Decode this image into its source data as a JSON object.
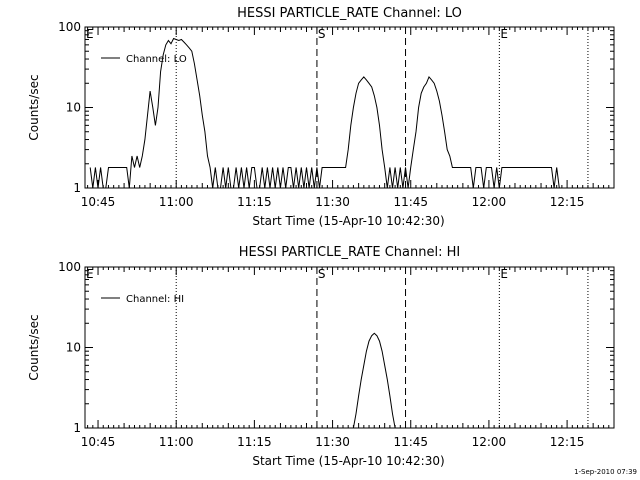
{
  "chart_data": [
    {
      "type": "line",
      "title": "HESSI PARTICLE_RATE Channel: LO",
      "xlabel": "Start Time (15-Apr-10 10:42:30)",
      "ylabel": "Counts/sec",
      "y_scale": "log",
      "ylim": [
        1,
        100
      ],
      "xlim": [
        "10:42:30",
        "12:24:00"
      ],
      "y_tick_labels": [
        "1",
        "10",
        "100"
      ],
      "x_tick_labels": [
        "10:45",
        "11:00",
        "11:15",
        "11:30",
        "11:45",
        "12:00",
        "12:15"
      ],
      "legend": {
        "placement": "top-left",
        "entries": [
          "Channel: LO"
        ]
      },
      "markers": [
        {
          "label": "E",
          "time": "10:42:30",
          "style": "dotted"
        },
        {
          "label": "",
          "time": "11:00:00",
          "style": "dotted"
        },
        {
          "label": "S",
          "time": "11:27:00",
          "style": "dashed"
        },
        {
          "label": "",
          "time": "11:44:00",
          "style": "dashed"
        },
        {
          "label": "E",
          "time": "12:02:00",
          "style": "dotted"
        },
        {
          "label": "",
          "time": "12:19:00",
          "style": "dotted"
        }
      ],
      "series": [
        {
          "name": "Channel: LO",
          "x": [
            "10:43:30",
            "10:44:00",
            "10:44:30",
            "10:45:00",
            "10:45:30",
            "10:46:00",
            "10:46:30",
            "10:47:00",
            "10:47:30",
            "10:48:00",
            "10:48:30",
            "10:49:00",
            "10:49:30",
            "10:50:00",
            "10:50:30",
            "10:51:00",
            "10:51:30",
            "10:52:00",
            "10:52:30",
            "10:53:00",
            "10:53:30",
            "10:54:00",
            "10:54:30",
            "10:55:00",
            "10:55:30",
            "10:56:00",
            "10:56:30",
            "10:57:00",
            "10:57:30",
            "10:58:00",
            "10:58:30",
            "10:59:00",
            "10:59:30",
            "11:00:00",
            "11:00:30",
            "11:01:00",
            "11:01:30",
            "11:02:00",
            "11:02:30",
            "11:03:00",
            "11:03:30",
            "11:04:00",
            "11:04:30",
            "11:05:00",
            "11:05:30",
            "11:06:00",
            "11:06:30",
            "11:07:00",
            "11:07:30",
            "11:08:00",
            "11:08:30",
            "11:09:00",
            "11:09:30",
            "11:10:00",
            "11:10:30",
            "11:11:00",
            "11:11:30",
            "11:12:00",
            "11:12:30",
            "11:13:00",
            "11:13:30",
            "11:14:00",
            "11:14:30",
            "11:15:00",
            "11:15:30",
            "11:16:00",
            "11:16:30",
            "11:17:00",
            "11:17:30",
            "11:18:00",
            "11:18:30",
            "11:19:00",
            "11:19:30",
            "11:20:00",
            "11:20:30",
            "11:21:00",
            "11:21:30",
            "11:22:00",
            "11:22:30",
            "11:23:00",
            "11:23:30",
            "11:24:00",
            "11:24:30",
            "11:25:00",
            "11:25:30",
            "11:26:00",
            "11:26:30",
            "11:27:00",
            "11:27:30",
            "11:28:00",
            "11:28:30",
            "11:29:00",
            "11:29:30",
            "11:30:00",
            "11:30:30",
            "11:31:00",
            "11:31:30",
            "11:32:00",
            "11:32:30",
            "11:33:00",
            "11:33:30",
            "11:34:00",
            "11:34:30",
            "11:35:00",
            "11:35:30",
            "11:36:00",
            "11:36:30",
            "11:37:00",
            "11:37:30",
            "11:38:00",
            "11:38:30",
            "11:39:00",
            "11:39:30",
            "11:40:00",
            "11:40:30",
            "11:41:00",
            "11:41:30",
            "11:42:00",
            "11:42:30",
            "11:43:00",
            "11:43:30",
            "11:44:00",
            "11:44:30",
            "11:45:00",
            "11:45:30",
            "11:46:00",
            "11:46:30",
            "11:47:00",
            "11:47:30",
            "11:48:00",
            "11:48:30",
            "11:49:00",
            "11:49:30",
            "11:50:00",
            "11:50:30",
            "11:51:00",
            "11:51:30",
            "11:52:00",
            "11:52:30",
            "11:53:00",
            "11:53:30",
            "11:54:00",
            "11:54:30",
            "11:55:00",
            "11:55:30",
            "11:56:00",
            "11:56:30",
            "11:57:00",
            "11:57:30",
            "11:58:00",
            "11:58:30",
            "11:59:00",
            "11:59:30",
            "12:00:00",
            "12:00:30",
            "12:01:00",
            "12:01:30",
            "12:02:00",
            "12:02:30",
            "12:03:00",
            "12:03:30",
            "12:04:00",
            "12:04:30",
            "12:05:00",
            "12:05:30",
            "12:06:00",
            "12:06:30",
            "12:07:00",
            "12:07:30",
            "12:08:00",
            "12:08:30",
            "12:09:00",
            "12:09:30",
            "12:10:00",
            "12:10:30",
            "12:11:00",
            "12:11:30",
            "12:12:00",
            "12:12:30",
            "12:13:00",
            "12:13:30"
          ],
          "y": [
            1.8,
            1.0,
            1.8,
            1.0,
            1.8,
            1.0,
            1.0,
            1.8,
            1.8,
            1.8,
            1.8,
            1.8,
            1.8,
            1.8,
            1.8,
            1.0,
            2.5,
            1.8,
            2.5,
            1.8,
            2.5,
            4.0,
            8,
            16,
            10,
            6,
            10,
            28,
            45,
            60,
            68,
            62,
            72,
            70,
            68,
            70,
            65,
            60,
            55,
            50,
            35,
            22,
            14,
            8,
            5,
            2.5,
            1.8,
            1.0,
            1.8,
            1.0,
            1.0,
            1.8,
            1.0,
            1.8,
            1.0,
            1.0,
            1.8,
            1.0,
            1.8,
            1.0,
            1.8,
            1.0,
            1.8,
            1.8,
            1.0,
            1.0,
            1.8,
            1.0,
            1.8,
            1.0,
            1.8,
            1.0,
            1.8,
            1.0,
            1.8,
            1.0,
            1.8,
            1.8,
            1.0,
            1.8,
            1.0,
            1.8,
            1.0,
            1.8,
            1.0,
            1.8,
            1.0,
            1.8,
            1.0,
            1.8,
            1.8,
            1.8,
            1.8,
            1.8,
            1.8,
            1.8,
            1.8,
            1.8,
            1.8,
            3,
            6,
            10,
            15,
            20,
            22,
            24,
            22,
            20,
            18,
            14,
            10,
            6,
            3,
            1.8,
            1.0,
            1.8,
            1.0,
            1.8,
            1.0,
            1.8,
            1.0,
            1.8,
            1.0,
            1.8,
            3,
            5,
            10,
            15,
            18,
            20,
            24,
            22,
            20,
            16,
            12,
            8,
            5,
            3,
            2.5,
            1.8,
            1.8,
            1.8,
            1.8,
            1.8,
            1.8,
            1.8,
            1.8,
            1.0,
            1.8,
            1.8,
            1.8,
            1.0,
            1.8,
            1.8,
            1.8,
            1.0,
            1.8,
            1.0,
            1.8,
            1.8,
            1.8,
            1.8,
            1.8,
            1.8,
            1.8,
            1.8,
            1.8,
            1.8,
            1.8,
            1.8,
            1.8,
            1.8,
            1.8,
            1.8,
            1.8,
            1.8,
            1.8,
            1.8,
            1.0,
            1.8,
            1.0
          ]
        }
      ]
    },
    {
      "type": "line",
      "title": "HESSI PARTICLE_RATE Channel: HI",
      "xlabel": "Start Time (15-Apr-10 10:42:30)",
      "ylabel": "Counts/sec",
      "y_scale": "log",
      "ylim": [
        1,
        100
      ],
      "xlim": [
        "10:42:30",
        "12:24:00"
      ],
      "y_tick_labels": [
        "1",
        "10",
        "100"
      ],
      "x_tick_labels": [
        "10:45",
        "11:00",
        "11:15",
        "11:30",
        "11:45",
        "12:00",
        "12:15"
      ],
      "legend": {
        "placement": "top-left",
        "entries": [
          "Channel: HI"
        ]
      },
      "markers": [
        {
          "label": "E",
          "time": "10:42:30",
          "style": "dotted"
        },
        {
          "label": "",
          "time": "11:00:00",
          "style": "dotted"
        },
        {
          "label": "S",
          "time": "11:27:00",
          "style": "dashed"
        },
        {
          "label": "",
          "time": "11:44:00",
          "style": "dashed"
        },
        {
          "label": "E",
          "time": "12:02:00",
          "style": "dotted"
        },
        {
          "label": "",
          "time": "12:19:00",
          "style": "dotted"
        }
      ],
      "series": [
        {
          "name": "Channel: HI",
          "x": [
            "11:34:00",
            "11:34:30",
            "11:35:00",
            "11:35:30",
            "11:36:00",
            "11:36:30",
            "11:37:00",
            "11:37:30",
            "11:38:00",
            "11:38:30",
            "11:39:00",
            "11:39:30",
            "11:40:00",
            "11:40:30",
            "11:41:00",
            "11:41:30",
            "11:42:00"
          ],
          "y": [
            1.0,
            1.5,
            2.5,
            4,
            6,
            9,
            12,
            14,
            15,
            14,
            12,
            9,
            6,
            4,
            2.5,
            1.5,
            1.0
          ]
        }
      ]
    }
  ],
  "footer_stamp": "1-Sep-2010 07:39"
}
